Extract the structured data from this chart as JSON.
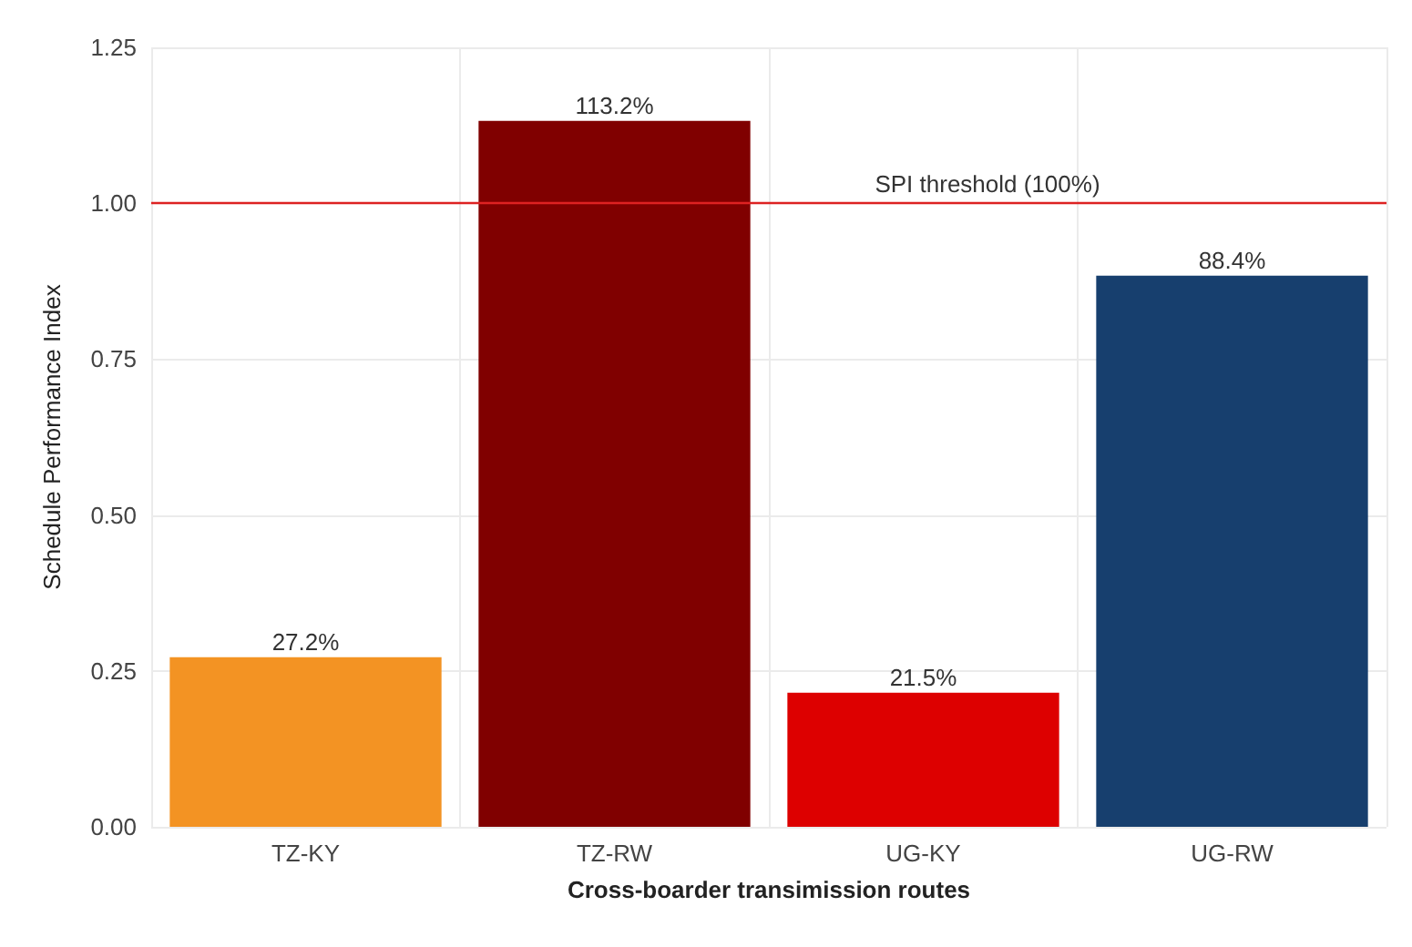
{
  "chart_data": {
    "type": "bar",
    "categories": [
      "TZ-KY",
      "TZ-RW",
      "UG-KY",
      "UG-RW"
    ],
    "values": [
      0.272,
      1.132,
      0.215,
      0.884
    ],
    "value_labels": [
      "27.2%",
      "113.2%",
      "21.5%",
      "88.4%"
    ],
    "colors": [
      "#f39323",
      "#800000",
      "#dd0000",
      "#173f6e"
    ],
    "xlabel": "Cross-boarder transimission routes",
    "ylabel": "Schedule Performance Index",
    "ylim": [
      0,
      1.25
    ],
    "yticks": [
      {
        "value": 0,
        "label": "0.00"
      },
      {
        "value": 0.25,
        "label": "0.25"
      },
      {
        "value": 0.5,
        "label": "0.50"
      },
      {
        "value": 0.75,
        "label": "0.75"
      },
      {
        "value": 1,
        "label": "1.00"
      },
      {
        "value": 1.25,
        "label": "1.25"
      }
    ],
    "ref_lines": [
      {
        "axis": "y",
        "value": 1,
        "label": "SPI threshold (100%)",
        "color": "#dd2222"
      }
    ],
    "grid": true
  }
}
